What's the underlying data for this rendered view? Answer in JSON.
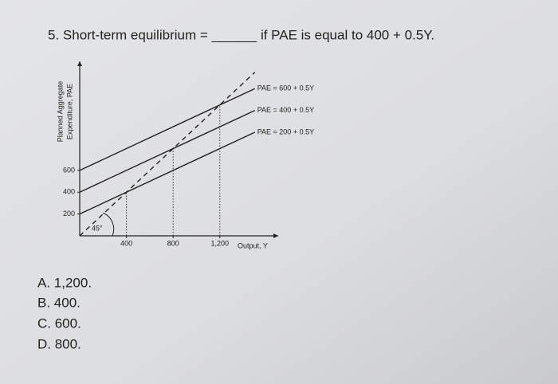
{
  "question": "5. Short-term equilibrium = ______ if PAE is equal to 400 + 0.5Y.",
  "options": [
    "A. 1,200.",
    "B. 400.",
    "C. 600.",
    "D. 800."
  ],
  "chart_data": {
    "type": "line",
    "x_label": "Output, Y",
    "y_label": [
      "Planned Aggregate",
      "Expenditure, PAE"
    ],
    "annotation": "45°",
    "xlim": [
      0,
      1700
    ],
    "ylim": [
      0,
      1600
    ],
    "xticks": [
      400,
      800,
      {
        "value": 1200,
        "label": "1,200"
      }
    ],
    "yticks": [
      200,
      400,
      600
    ],
    "series": [
      {
        "name": "PAE = 600 + 0.5Y",
        "color": "#222",
        "x": [
          0,
          1500
        ],
        "values": [
          600,
          1350
        ]
      },
      {
        "name": "PAE = 400 + 0.5Y",
        "color": "#222",
        "x": [
          0,
          1500
        ],
        "values": [
          400,
          1150
        ]
      },
      {
        "name": "PAE = 200 + 0.5Y",
        "color": "#222",
        "x": [
          0,
          1500
        ],
        "values": [
          200,
          950
        ]
      },
      {
        "color": "#222",
        "dashed": true,
        "x": [
          0,
          1500
        ],
        "values": [
          0,
          1500
        ]
      }
    ]
  }
}
